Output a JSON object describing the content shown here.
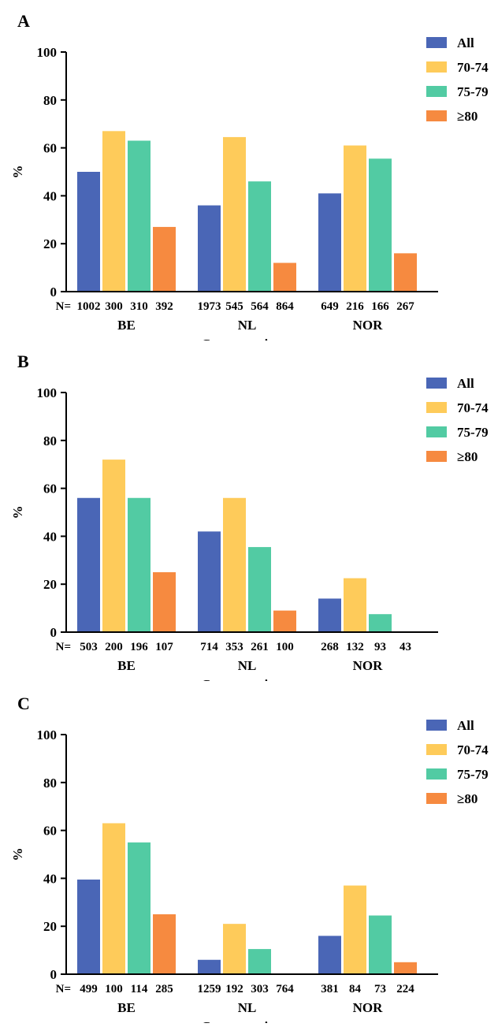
{
  "colors": {
    "All": "#4a66b6",
    "70-74": "#fecb5a",
    "75-79": "#52cba3",
    ">=80": "#f68a40"
  },
  "legend": [
    "All",
    "70-74",
    "75-79",
    "≥80"
  ],
  "chart_data": [
    {
      "type": "bar",
      "panel_label": "A",
      "ylabel": "%",
      "xlabel": "Cancer registry",
      "ylim": [
        0,
        100
      ],
      "yticks": [
        "0",
        "20",
        "40",
        "60",
        "80",
        "100"
      ],
      "n_prefix": "N=",
      "categories": [
        "BE",
        "NL",
        "NOR"
      ],
      "series": [
        {
          "name": "All",
          "values": [
            50,
            36,
            41
          ]
        },
        {
          "name": "70-74",
          "values": [
            67,
            64.5,
            61
          ]
        },
        {
          "name": "75-79",
          "values": [
            63,
            46,
            55.5
          ]
        },
        {
          "name": "≥80",
          "values": [
            27,
            12,
            16
          ]
        }
      ],
      "n_labels": [
        [
          "1002",
          "300",
          "310",
          "392"
        ],
        [
          "1973",
          "545",
          "564",
          "864"
        ],
        [
          "649",
          "216",
          "166",
          "267"
        ]
      ]
    },
    {
      "type": "bar",
      "panel_label": "B",
      "ylabel": "%",
      "xlabel": "Cancer registry",
      "ylim": [
        0,
        100
      ],
      "yticks": [
        "0",
        "20",
        "40",
        "60",
        "80",
        "100"
      ],
      "n_prefix": "N=",
      "categories": [
        "BE",
        "NL",
        "NOR"
      ],
      "series": [
        {
          "name": "All",
          "values": [
            56,
            42,
            14
          ]
        },
        {
          "name": "70-74",
          "values": [
            72,
            56,
            22.5
          ]
        },
        {
          "name": "75-79",
          "values": [
            56,
            35.5,
            7.5
          ]
        },
        {
          "name": "≥80",
          "values": [
            25,
            9,
            0
          ]
        }
      ],
      "n_labels": [
        [
          "503",
          "200",
          "196",
          "107"
        ],
        [
          "714",
          "353",
          "261",
          "100"
        ],
        [
          "268",
          "132",
          "93",
          "43"
        ]
      ]
    },
    {
      "type": "bar",
      "panel_label": "C",
      "ylabel": "%",
      "xlabel": "Cancer registry",
      "ylim": [
        0,
        100
      ],
      "yticks": [
        "0",
        "20",
        "40",
        "60",
        "80",
        "100"
      ],
      "n_prefix": "N=",
      "categories": [
        "BE",
        "NL",
        "NOR"
      ],
      "series": [
        {
          "name": "All",
          "values": [
            39.5,
            6,
            16
          ]
        },
        {
          "name": "70-74",
          "values": [
            63,
            21,
            37
          ]
        },
        {
          "name": "75-79",
          "values": [
            55,
            10.5,
            24.5
          ]
        },
        {
          "name": "≥80",
          "values": [
            25,
            0,
            5
          ]
        }
      ],
      "n_labels": [
        [
          "499",
          "100",
          "114",
          "285"
        ],
        [
          "1259",
          "192",
          "303",
          "764"
        ],
        [
          "381",
          "84",
          "73",
          "224"
        ]
      ]
    }
  ]
}
